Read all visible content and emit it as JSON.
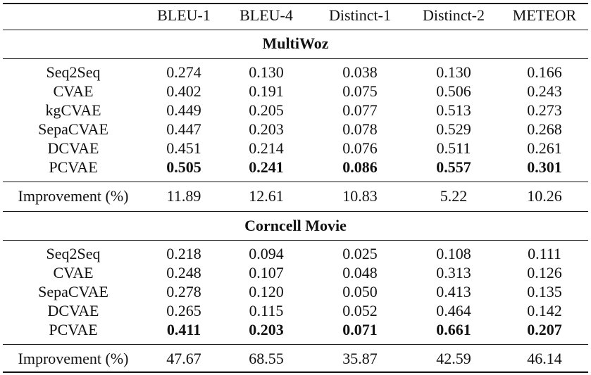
{
  "table": {
    "columns": [
      "",
      "BLEU-1",
      "BLEU-4",
      "Distinct-1",
      "Distinct-2",
      "METEOR"
    ],
    "sections": [
      {
        "title": "MultiWoz",
        "rows": [
          {
            "model": "Seq2Seq",
            "values": [
              "0.274",
              "0.130",
              "0.038",
              "0.130",
              "0.166"
            ],
            "bold": false
          },
          {
            "model": "CVAE",
            "values": [
              "0.402",
              "0.191",
              "0.075",
              "0.506",
              "0.243"
            ],
            "bold": false
          },
          {
            "model": "kgCVAE",
            "values": [
              "0.449",
              "0.205",
              "0.077",
              "0.513",
              "0.273"
            ],
            "bold": false
          },
          {
            "model": "SepaCVAE",
            "values": [
              "0.447",
              "0.203",
              "0.078",
              "0.529",
              "0.268"
            ],
            "bold": false
          },
          {
            "model": "DCVAE",
            "values": [
              "0.451",
              "0.214",
              "0.076",
              "0.511",
              "0.261"
            ],
            "bold": false
          },
          {
            "model": "PCVAE",
            "values": [
              "0.505",
              "0.241",
              "0.086",
              "0.557",
              "0.301"
            ],
            "bold": true
          }
        ],
        "improvement": {
          "label": "Improvement (%)",
          "values": [
            "11.89",
            "12.61",
            "10.83",
            "5.22",
            "10.26"
          ]
        }
      },
      {
        "title": "Corncell Movie",
        "rows": [
          {
            "model": "Seq2Seq",
            "values": [
              "0.218",
              "0.094",
              "0.025",
              "0.108",
              "0.111"
            ],
            "bold": false
          },
          {
            "model": "CVAE",
            "values": [
              "0.248",
              "0.107",
              "0.048",
              "0.313",
              "0.126"
            ],
            "bold": false
          },
          {
            "model": "SepaCVAE",
            "values": [
              "0.278",
              "0.120",
              "0.050",
              "0.413",
              "0.135"
            ],
            "bold": false
          },
          {
            "model": "DCVAE",
            "values": [
              "0.265",
              "0.115",
              "0.052",
              "0.464",
              "0.142"
            ],
            "bold": false
          },
          {
            "model": "PCVAE",
            "values": [
              "0.411",
              "0.203",
              "0.071",
              "0.661",
              "0.207"
            ],
            "bold": true
          }
        ],
        "improvement": {
          "label": "Improvement (%)",
          "values": [
            "47.67",
            "68.55",
            "35.87",
            "42.59",
            "46.14"
          ]
        }
      }
    ]
  }
}
